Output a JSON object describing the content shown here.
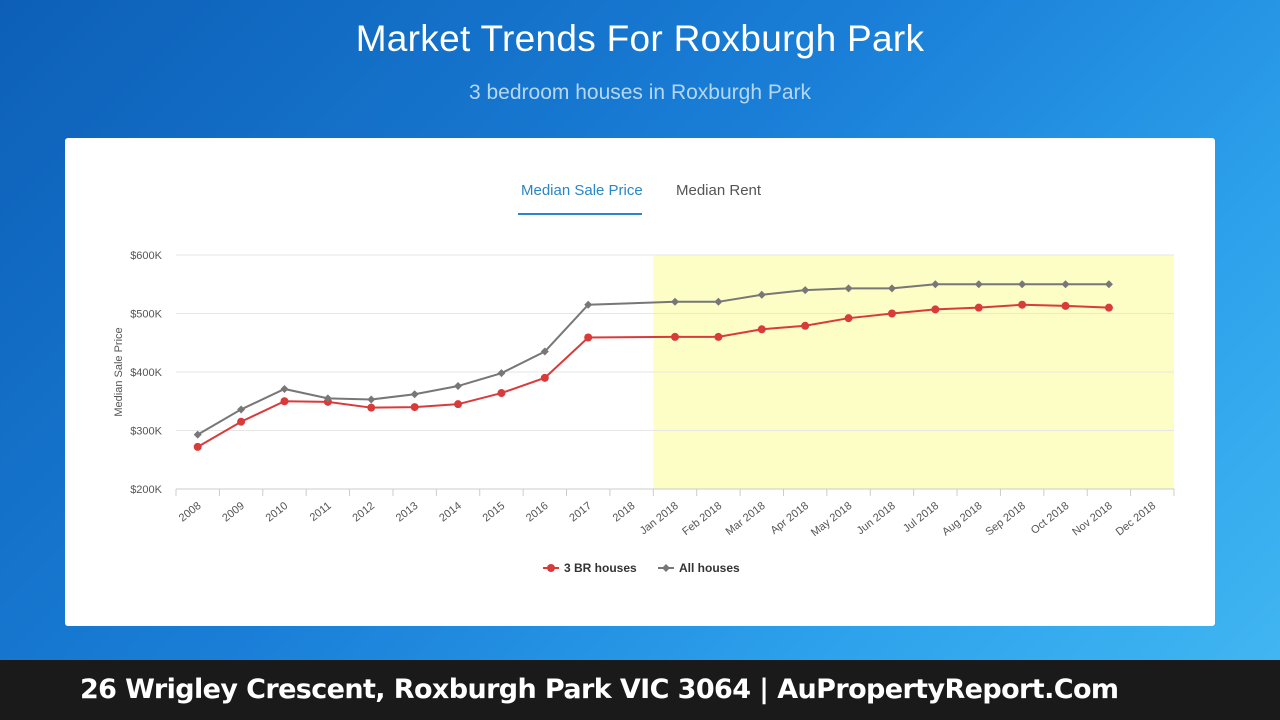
{
  "header": {
    "title": "Market Trends For Roxburgh Park",
    "subtitle": "3 bedroom houses in Roxburgh Park"
  },
  "tabs": [
    {
      "label": "Median Sale Price",
      "active": true
    },
    {
      "label": "Median Rent",
      "active": false
    }
  ],
  "footer": {
    "text": "26 Wrigley Crescent, Roxburgh Park VIC 3064 | AuPropertyReport.Com"
  },
  "colors": {
    "series_3br": "#d93b3b",
    "series_all": "#777777",
    "highlight": "#fdfdc6",
    "tab_active": "#2a86c7"
  },
  "chart_data": {
    "type": "line",
    "ylabel": "Median Sale Price",
    "xlabel": "",
    "ylim": [
      200000,
      600000
    ],
    "yticks": [
      {
        "value": 200000,
        "label": "$200K"
      },
      {
        "value": 300000,
        "label": "$300K"
      },
      {
        "value": 400000,
        "label": "$400K"
      },
      {
        "value": 500000,
        "label": "$500K"
      },
      {
        "value": 600000,
        "label": "$600K"
      }
    ],
    "categories": [
      "2008",
      "2009",
      "2010",
      "2011",
      "2012",
      "2013",
      "2014",
      "2015",
      "2016",
      "2017",
      "2018",
      "Jan 2018",
      "Feb 2018",
      "Mar 2018",
      "Apr 2018",
      "May 2018",
      "Jun 2018",
      "Jul 2018",
      "Aug 2018",
      "Sep 2018",
      "Oct 2018",
      "Nov 2018",
      "Dec 2018"
    ],
    "highlight_range": [
      "Jan 2018",
      "Dec 2018"
    ],
    "grid": true,
    "legend_position": "bottom-center",
    "series": [
      {
        "name": "3 BR houses",
        "color": "#d93b3b",
        "marker": "circle",
        "values": [
          272000,
          315000,
          350000,
          349000,
          339000,
          340000,
          345000,
          364000,
          390000,
          459000,
          null,
          460000,
          460000,
          473000,
          479000,
          492000,
          500000,
          507000,
          510000,
          515000,
          513000,
          510000,
          null
        ]
      },
      {
        "name": "All houses",
        "color": "#777777",
        "marker": "diamond",
        "values": [
          293000,
          336000,
          371000,
          355000,
          353000,
          362000,
          376000,
          398000,
          435000,
          515000,
          null,
          520000,
          520000,
          532000,
          540000,
          543000,
          543000,
          550000,
          550000,
          550000,
          550000,
          550000,
          null
        ]
      }
    ]
  }
}
